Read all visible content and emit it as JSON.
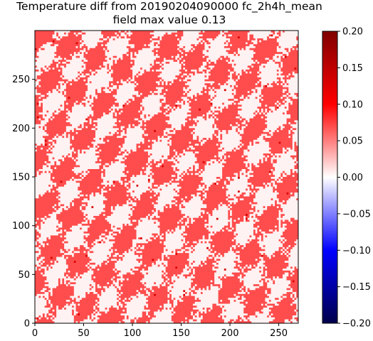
{
  "chart_data": {
    "type": "heatmap",
    "title_line1": "Temperature diff from 20190204090000 fc_2h4h_mean",
    "title_line2": "field max value 0.13",
    "xlim": [
      0,
      270
    ],
    "ylim": [
      0,
      300
    ],
    "x_ticks": [
      0,
      50,
      100,
      150,
      200,
      250
    ],
    "x_tick_labels": [
      "0",
      "50",
      "100",
      "150",
      "200",
      "250"
    ],
    "y_ticks": [
      0,
      50,
      100,
      150,
      200,
      250
    ],
    "y_tick_labels": [
      "0",
      "50",
      "100",
      "150",
      "200",
      "250"
    ],
    "colormap": "seismic",
    "vmin": -0.2,
    "vmax": 0.2,
    "colorbar_ticks": [
      0.2,
      0.15,
      0.1,
      0.05,
      0.0,
      -0.05,
      -0.1,
      -0.15,
      -0.2
    ],
    "colorbar_tick_labels": [
      "0.20",
      "0.15",
      "0.10",
      "0.05",
      "0.00",
      "−0.05",
      "−0.10",
      "−0.15",
      "−0.20"
    ],
    "field_max": 0.13,
    "dominant_values": [
      0.0,
      0.07
    ],
    "colors": {
      "dominant_positive": "#ff5a5a",
      "near_zero": "#fdeeee",
      "colormap_top": "#7f0000",
      "colormap_mid": "#ffffff",
      "colormap_bottom": "#00004c"
    }
  }
}
